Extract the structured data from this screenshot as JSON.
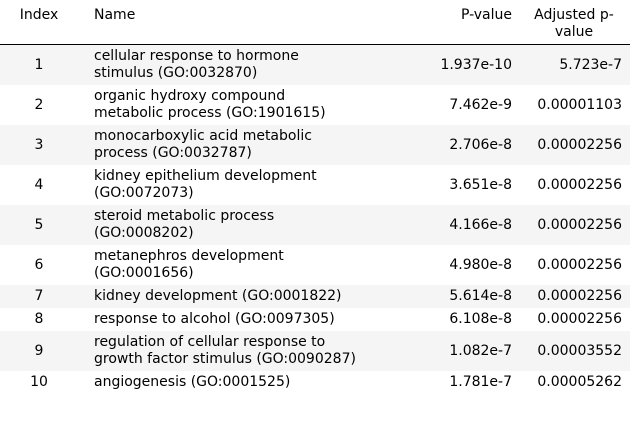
{
  "table": {
    "headers": {
      "index": "Index",
      "name": "Name",
      "p_value": "P-value",
      "adjusted_p_value": "Adjusted p-\nvalue"
    },
    "rows": [
      {
        "index": "1",
        "name": "cellular response to hormone\nstimulus (GO:0032870)",
        "p_value": "1.937e-10",
        "adjusted_p_value": "5.723e-7"
      },
      {
        "index": "2",
        "name": "organic hydroxy compound\nmetabolic process (GO:1901615)",
        "p_value": "7.462e-9",
        "adjusted_p_value": "0.00001103"
      },
      {
        "index": "3",
        "name": "monocarboxylic acid metabolic\nprocess (GO:0032787)",
        "p_value": "2.706e-8",
        "adjusted_p_value": "0.00002256"
      },
      {
        "index": "4",
        "name": "kidney epithelium development\n(GO:0072073)",
        "p_value": "3.651e-8",
        "adjusted_p_value": "0.00002256"
      },
      {
        "index": "5",
        "name": "steroid metabolic process\n(GO:0008202)",
        "p_value": "4.166e-8",
        "adjusted_p_value": "0.00002256"
      },
      {
        "index": "6",
        "name": "metanephros development\n(GO:0001656)",
        "p_value": "4.980e-8",
        "adjusted_p_value": "0.00002256"
      },
      {
        "index": "7",
        "name": "kidney development (GO:0001822)",
        "p_value": "5.614e-8",
        "adjusted_p_value": "0.00002256"
      },
      {
        "index": "8",
        "name": "response to alcohol (GO:0097305)",
        "p_value": "6.108e-8",
        "adjusted_p_value": "0.00002256"
      },
      {
        "index": "9",
        "name": "regulation of cellular response to\ngrowth factor stimulus (GO:0090287)",
        "p_value": "1.082e-7",
        "adjusted_p_value": "0.00003552"
      },
      {
        "index": "10",
        "name": "angiogenesis (GO:0001525)",
        "p_value": "1.781e-7",
        "adjusted_p_value": "0.00005262"
      }
    ]
  }
}
